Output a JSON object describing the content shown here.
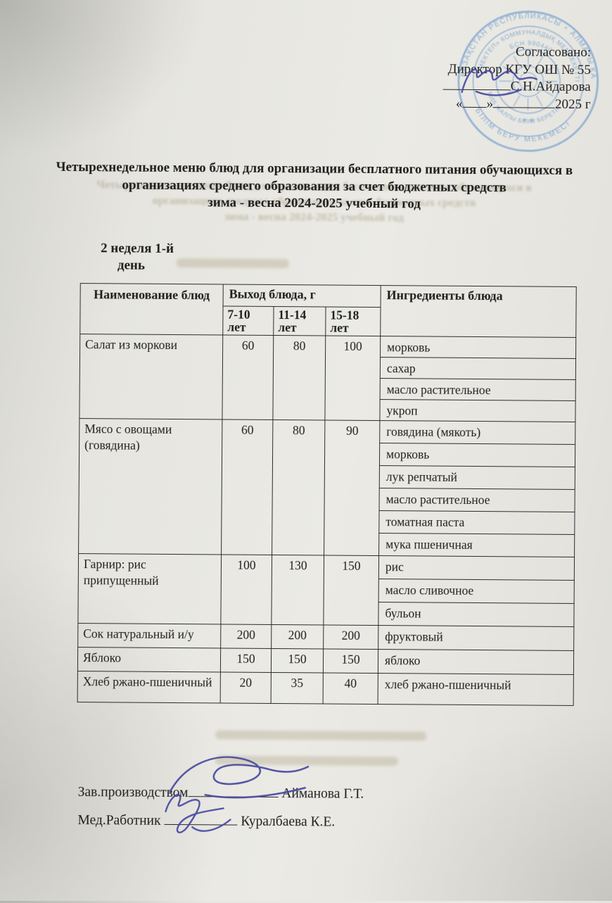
{
  "colors": {
    "paper": "#e6e5e0",
    "text_ink": "#1e1e1e",
    "stamp_blue": "#7fa6d0",
    "signature_ink": "#45479f"
  },
  "stamp": {
    "outer_top": "ҚАЗАҚСТАН РЕСПУБЛИКАСЫ ⋆ АЛМАТЫ ҚАЛАСЫ БІЛІМ",
    "outer_bottom": "БІЛІМ БЕРУ МЕКЕМЕСІ",
    "inner_top": "«МЕКТЕП» КОММУНАЛДЫҚ МЕМЛЕКЕТТІК",
    "inner_bsn": "БСН 990440",
    "inner_bottom": "№55 ЖАЛПЫ БІЛІМ БЕРЕТІН",
    "stars": "✶  ✶"
  },
  "approval": {
    "agreed_label": "Согласовано:",
    "director_line": "Директор КГУ ОШ № 55",
    "director_name": "С.Н.Айдарова",
    "quote_open": "«",
    "quote_close": "»",
    "year_label": "2025 г"
  },
  "title": {
    "line1": "Четырехнедельное меню блюд для организации бесплатного питания обучающихся в",
    "line2": "организациях среднего образования за счет бюджетных средств",
    "line3": "зима - весна 2024-2025 учебный год"
  },
  "week_label": {
    "line1": "2 неделя 1-й",
    "line2": "день"
  },
  "table": {
    "col_headers": {
      "name": "Наименование блюд",
      "yield": "Выход блюда, г",
      "ingredients": "Ингредиенты блюда"
    },
    "age_groups": [
      "7-10 лет",
      "11-14 лет",
      "15-18 лет"
    ],
    "rows": [
      {
        "dish": "Салат из моркови",
        "yields": [
          "60",
          "80",
          "100"
        ],
        "ingredients": [
          "морковь",
          "сахар",
          "масло растительное",
          "укроп"
        ]
      },
      {
        "dish": "Мясо с овощами (говядина)",
        "yields": [
          "60",
          "80",
          "90"
        ],
        "ingredients": [
          "говядина (мякоть)",
          "морковь",
          "лук репчатый",
          "масло растительное",
          "томатная паста",
          "мука пшеничная"
        ]
      },
      {
        "dish": "Гарнир: рис припущенный",
        "yields": [
          "100",
          "130",
          "150"
        ],
        "ingredients": [
          "рис",
          "масло сливочное",
          "бульон"
        ]
      },
      {
        "dish": "Сок натуральный и/у",
        "yields": [
          "200",
          "200",
          "200"
        ],
        "ingredients": [
          "фруктовый"
        ]
      },
      {
        "dish": "Яблоко",
        "yields": [
          "150",
          "150",
          "150"
        ],
        "ingredients": [
          "яблоко"
        ]
      },
      {
        "dish": "Хлеб ржано-пшеничный",
        "yields": [
          "20",
          "35",
          "40"
        ],
        "ingredients": [
          "хлеб ржано-пшеничный"
        ]
      }
    ]
  },
  "signatures": {
    "production_label": "Зав.производством",
    "production_name": "Айманова Г.Т.",
    "medical_label": "Мед.Работник",
    "medical_name": "Куралбаева К.Е."
  }
}
